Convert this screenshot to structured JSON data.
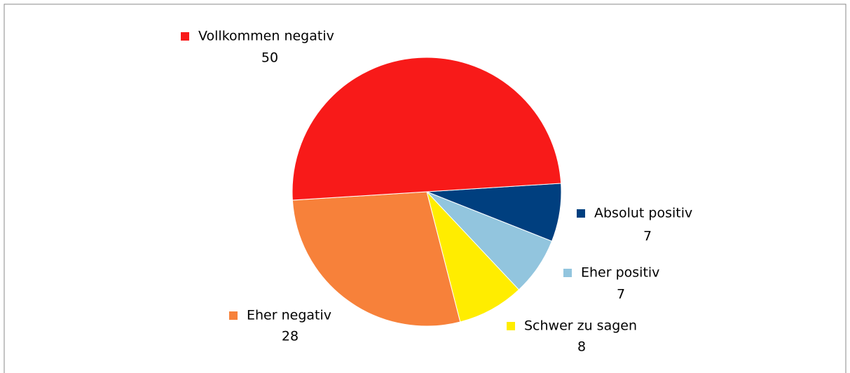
{
  "chart_data": {
    "type": "pie",
    "categories": [
      "Absolut positiv",
      "Eher positiv",
      "Schwer zu sagen",
      "Eher negativ",
      "Vollkommen negativ"
    ],
    "values": [
      7,
      7,
      8,
      28,
      50
    ],
    "colors": [
      "#003f7f",
      "#92c5de",
      "#ffed00",
      "#f7813a",
      "#f81a19"
    ]
  }
}
